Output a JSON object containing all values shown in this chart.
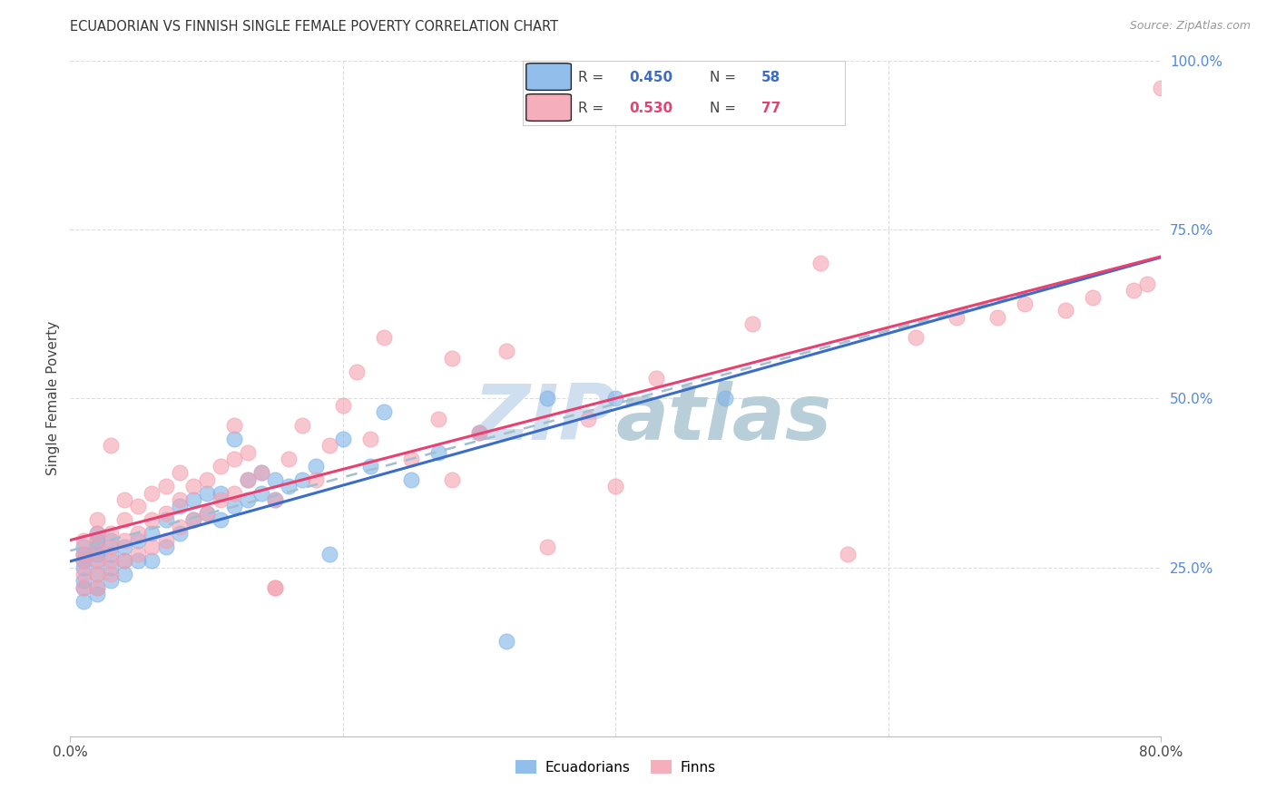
{
  "title": "ECUADORIAN VS FINNISH SINGLE FEMALE POVERTY CORRELATION CHART",
  "source": "Source: ZipAtlas.com",
  "ylabel": "Single Female Poverty",
  "legend_r1": "R = 0.450",
  "legend_n1": "N = 58",
  "legend_r2": "R = 0.530",
  "legend_n2": "N = 77",
  "color_blue": "#7EB3E8",
  "color_pink": "#F4A0B0",
  "color_blue_line": "#3B6CC7",
  "color_pink_line": "#E84070",
  "color_dash": "#A0BFD0",
  "watermark_color": "#D0DFF0",
  "background_color": "#FFFFFF",
  "grid_color": "#DDDDDD",
  "right_tick_color": "#5588DD",
  "xlim": [
    0.0,
    0.8
  ],
  "ylim": [
    0.0,
    1.0
  ],
  "ecu_x": [
    0.01,
    0.01,
    0.01,
    0.01,
    0.01,
    0.01,
    0.01,
    0.02,
    0.02,
    0.02,
    0.02,
    0.02,
    0.02,
    0.02,
    0.02,
    0.03,
    0.03,
    0.03,
    0.03,
    0.04,
    0.04,
    0.04,
    0.05,
    0.05,
    0.06,
    0.06,
    0.07,
    0.07,
    0.08,
    0.08,
    0.09,
    0.09,
    0.1,
    0.1,
    0.11,
    0.11,
    0.12,
    0.12,
    0.13,
    0.13,
    0.14,
    0.14,
    0.15,
    0.15,
    0.16,
    0.17,
    0.18,
    0.19,
    0.2,
    0.22,
    0.23,
    0.25,
    0.27,
    0.3,
    0.32,
    0.35,
    0.4,
    0.48
  ],
  "ecu_y": [
    0.2,
    0.22,
    0.23,
    0.25,
    0.26,
    0.27,
    0.28,
    0.21,
    0.22,
    0.24,
    0.26,
    0.27,
    0.28,
    0.29,
    0.3,
    0.23,
    0.25,
    0.27,
    0.29,
    0.24,
    0.26,
    0.28,
    0.26,
    0.29,
    0.26,
    0.3,
    0.28,
    0.32,
    0.3,
    0.34,
    0.32,
    0.35,
    0.33,
    0.36,
    0.32,
    0.36,
    0.34,
    0.44,
    0.35,
    0.38,
    0.36,
    0.39,
    0.35,
    0.38,
    0.37,
    0.38,
    0.4,
    0.27,
    0.44,
    0.4,
    0.48,
    0.38,
    0.42,
    0.45,
    0.14,
    0.5,
    0.5,
    0.5
  ],
  "fin_x": [
    0.01,
    0.01,
    0.01,
    0.01,
    0.01,
    0.02,
    0.02,
    0.02,
    0.02,
    0.02,
    0.02,
    0.03,
    0.03,
    0.03,
    0.03,
    0.03,
    0.04,
    0.04,
    0.04,
    0.04,
    0.05,
    0.05,
    0.05,
    0.06,
    0.06,
    0.06,
    0.07,
    0.07,
    0.07,
    0.08,
    0.08,
    0.08,
    0.09,
    0.09,
    0.1,
    0.1,
    0.11,
    0.11,
    0.12,
    0.12,
    0.12,
    0.13,
    0.13,
    0.14,
    0.15,
    0.15,
    0.16,
    0.17,
    0.18,
    0.19,
    0.2,
    0.21,
    0.22,
    0.23,
    0.25,
    0.27,
    0.28,
    0.3,
    0.32,
    0.35,
    0.38,
    0.4,
    0.43,
    0.5,
    0.55,
    0.57,
    0.62,
    0.65,
    0.68,
    0.7,
    0.73,
    0.75,
    0.78,
    0.79,
    0.8,
    0.28,
    0.15
  ],
  "fin_y": [
    0.22,
    0.24,
    0.26,
    0.27,
    0.29,
    0.22,
    0.24,
    0.26,
    0.28,
    0.3,
    0.32,
    0.24,
    0.26,
    0.28,
    0.3,
    0.43,
    0.26,
    0.29,
    0.32,
    0.35,
    0.27,
    0.3,
    0.34,
    0.28,
    0.32,
    0.36,
    0.29,
    0.33,
    0.37,
    0.31,
    0.35,
    0.39,
    0.32,
    0.37,
    0.33,
    0.38,
    0.35,
    0.4,
    0.36,
    0.41,
    0.46,
    0.38,
    0.42,
    0.39,
    0.35,
    0.22,
    0.41,
    0.46,
    0.38,
    0.43,
    0.49,
    0.54,
    0.44,
    0.59,
    0.41,
    0.47,
    0.56,
    0.45,
    0.57,
    0.28,
    0.47,
    0.37,
    0.53,
    0.61,
    0.7,
    0.27,
    0.59,
    0.62,
    0.62,
    0.64,
    0.63,
    0.65,
    0.66,
    0.67,
    0.96,
    0.38,
    0.22
  ]
}
